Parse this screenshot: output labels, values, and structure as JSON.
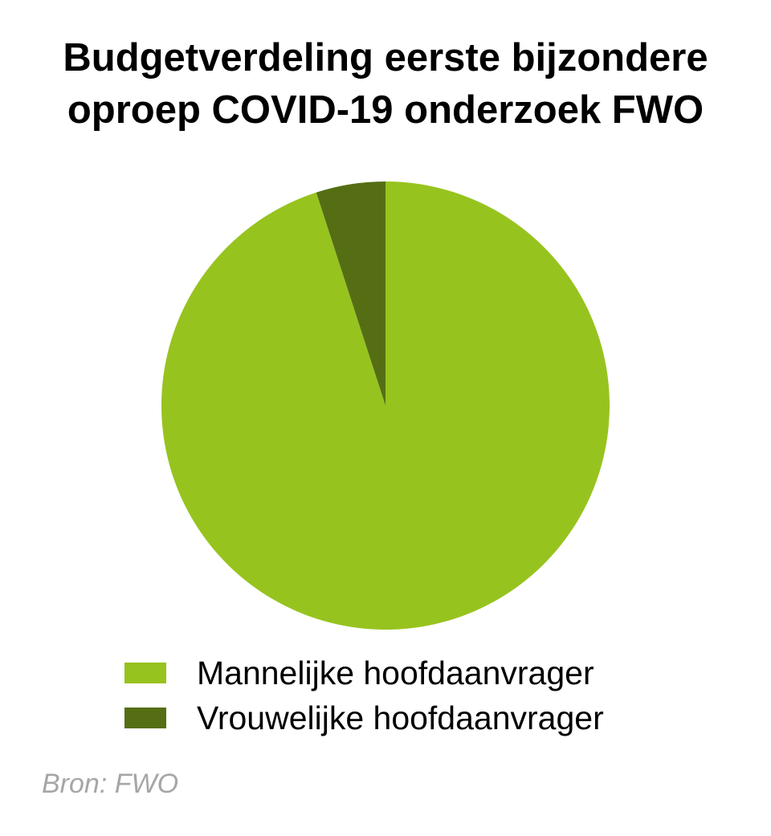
{
  "chart_data": {
    "type": "pie",
    "title_lines": [
      "Budgetverdeling eerste bijzondere",
      "oproep COVID-19 onderzoek FWO"
    ],
    "slices": [
      {
        "label": "Mannelijke hoofdaanvrager",
        "value": 95,
        "color": "#97c31f"
      },
      {
        "label": "Vrouwelijke hoofdaanvrager",
        "value": 5,
        "color": "#556e14"
      }
    ],
    "start_angle_deg": 0,
    "direction": "clockwise",
    "legend_position": "bottom",
    "source": "Bron: FWO"
  }
}
